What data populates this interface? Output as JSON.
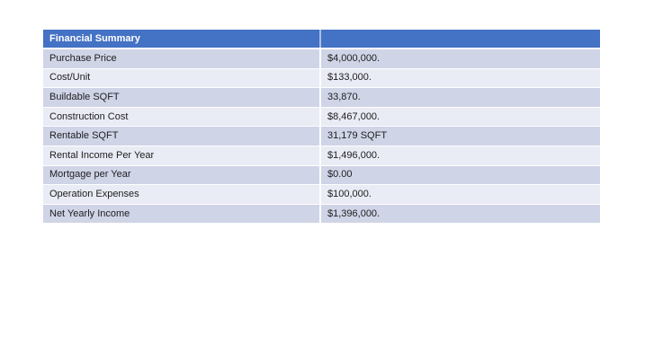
{
  "colors": {
    "page_bg": "#FFFFFF",
    "header_bg": "#4472C4",
    "header_text": "#FFFFFF",
    "band_dark": "#CFD4E7",
    "band_light": "#E9EBF5",
    "row_text": "#1E1E1E",
    "grid_line": "#FFFFFF"
  },
  "table": {
    "title": "Financial Summary",
    "header_value_cell": "",
    "rows": [
      {
        "label": "Purchase Price",
        "value": "$4,000,000."
      },
      {
        "label": "Cost/Unit",
        "value": "$133,000."
      },
      {
        "label": "Buildable SQFT",
        "value": "33,870."
      },
      {
        "label": "Construction Cost",
        "value": "$8,467,000."
      },
      {
        "label": "Rentable SQFT",
        "value": "31,179 SQFT"
      },
      {
        "label": "Rental Income Per Year",
        "value": "$1,496,000."
      },
      {
        "label": "Mortgage per Year",
        "value": "$0.00"
      },
      {
        "label": "Operation Expenses",
        "value": "$100,000."
      },
      {
        "label": "Net Yearly Income",
        "value": "$1,396,000."
      }
    ]
  }
}
